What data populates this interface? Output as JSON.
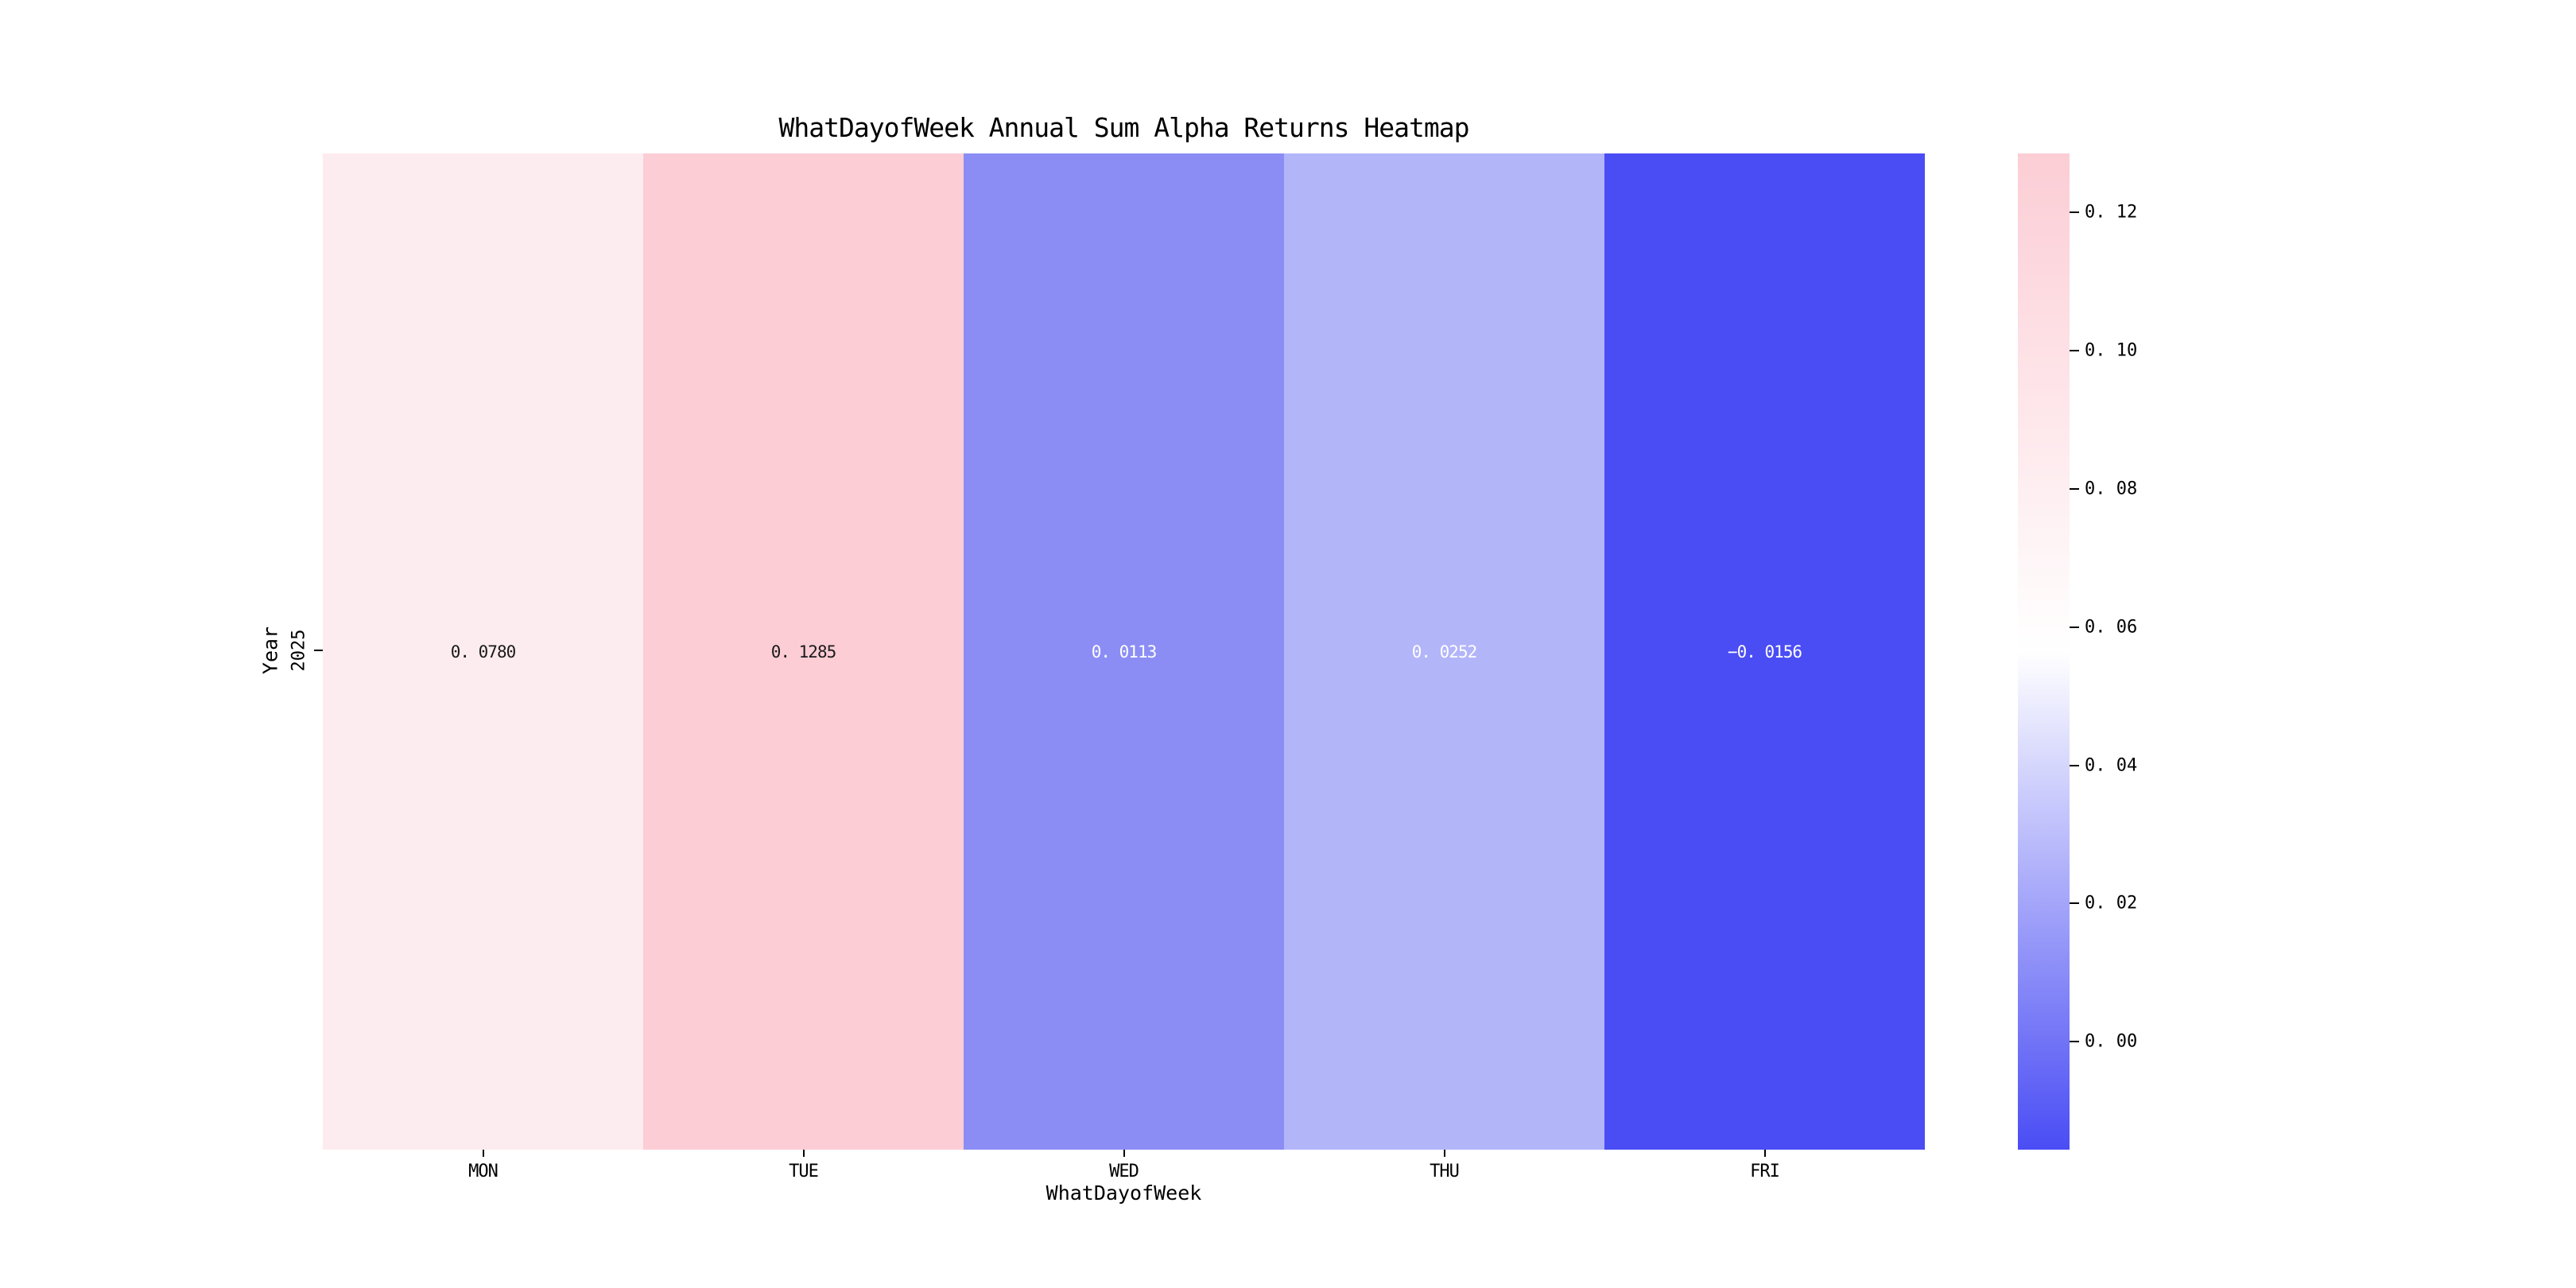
{
  "title": "WhatDayofWeek Annual Sum Alpha Returns Heatmap",
  "x_axis": {
    "label": "WhatDayofWeek",
    "categories": [
      "MON",
      "TUE",
      "WED",
      "THU",
      "FRI"
    ]
  },
  "y_axis": {
    "label": "Year",
    "categories": [
      "2025"
    ]
  },
  "cells": [
    {
      "day": "MON",
      "value": 0.078,
      "display": "0. 0780",
      "bg_color": "#fdecef",
      "text_color": "#1a1a1a"
    },
    {
      "day": "TUE",
      "value": 0.1285,
      "display": "0. 1285",
      "bg_color": "#fccdd5",
      "text_color": "#1a1a1a"
    },
    {
      "day": "WED",
      "value": 0.0113,
      "display": "0. 0113",
      "bg_color": "#8b8df5",
      "text_color": "#ffffff"
    },
    {
      "day": "THU",
      "value": 0.0252,
      "display": "0. 0252",
      "bg_color": "#b3b5f9",
      "text_color": "#ffffff"
    },
    {
      "day": "FRI",
      "value": -0.0156,
      "display": "−0. 0156",
      "bg_color": "#4a4df4",
      "text_color": "#ffffff"
    }
  ],
  "colorbar": {
    "vmin": -0.0156,
    "vmax": 0.1285,
    "gradient_top": "#fccdd5",
    "gradient_mid": "#ffffff",
    "gradient_bottom": "#4a4df4",
    "ticks": [
      {
        "value": 0.12,
        "label": "0. 12"
      },
      {
        "value": 0.1,
        "label": "0. 10"
      },
      {
        "value": 0.08,
        "label": "0. 08"
      },
      {
        "value": 0.06,
        "label": "0. 06"
      },
      {
        "value": 0.04,
        "label": "0. 04"
      },
      {
        "value": 0.02,
        "label": "0. 02"
      },
      {
        "value": 0.0,
        "label": "0. 00"
      }
    ]
  },
  "chart_data": {
    "type": "heatmap",
    "title": "WhatDayofWeek Annual Sum Alpha Returns Heatmap",
    "xlabel": "WhatDayofWeek",
    "ylabel": "Year",
    "x_categories": [
      "MON",
      "TUE",
      "WED",
      "THU",
      "FRI"
    ],
    "y_categories": [
      "2025"
    ],
    "values": [
      [
        0.078,
        0.1285,
        0.0113,
        0.0252,
        -0.0156
      ]
    ],
    "annotations": [
      [
        "0.0780",
        "0.1285",
        "0.0113",
        "0.0252",
        "-0.0156"
      ]
    ],
    "vmin": -0.0156,
    "vmax": 0.1285,
    "colormap": "diverging blue-white-pink (white centered at ~0.056)",
    "colorbar_ticks": [
      0.12,
      0.1,
      0.08,
      0.06,
      0.04,
      0.02,
      0.0
    ],
    "colorbar_position": "right",
    "grid": false
  }
}
